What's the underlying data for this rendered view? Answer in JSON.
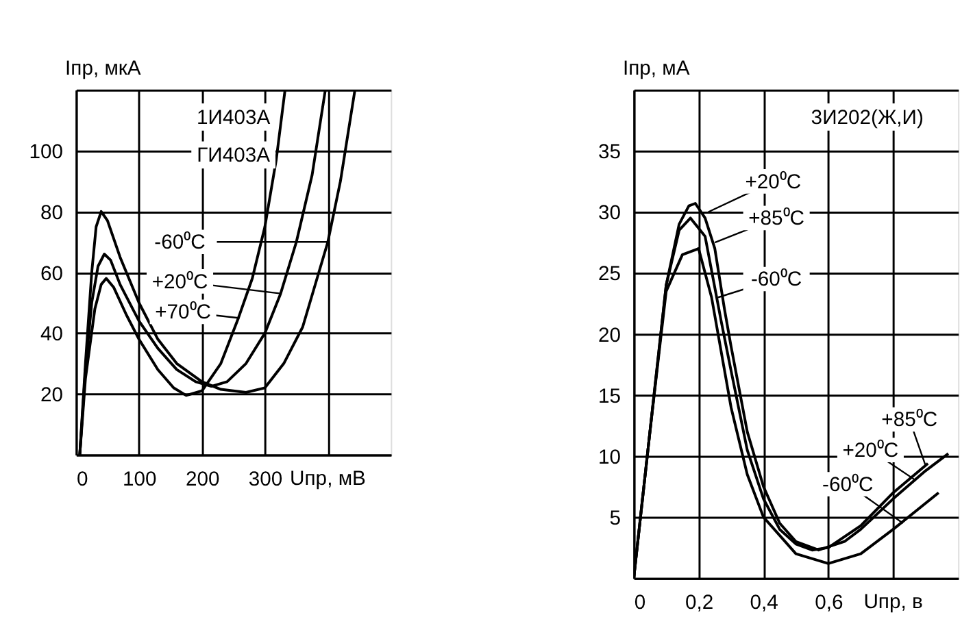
{
  "chart_data": [
    {
      "type": "line",
      "xlabel": "Uпр, мВ",
      "ylabel": "Iпр, мкА",
      "xlim": [
        0,
        500
      ],
      "ylim": [
        0,
        120
      ],
      "xticks": [
        0,
        100,
        200,
        300,
        {
          "value": 400,
          "label": null
        }
      ],
      "yticks": [
        {
          "value": 0,
          "label": null
        },
        20,
        40,
        60,
        80,
        100,
        {
          "value": 120,
          "label": null
        }
      ],
      "grid": true,
      "line_style": "solid",
      "series": [
        {
          "color": "#000000",
          "x": [
            6,
            15,
            25,
            32,
            40,
            50,
            70,
            100,
            130,
            160,
            200,
            230,
            270,
            300,
            330,
            360,
            400,
            420,
            443
          ],
          "values": [
            0,
            30,
            60,
            75,
            80,
            77,
            65,
            50,
            38,
            30,
            24,
            21.5,
            20.5,
            22,
            30,
            42,
            70,
            90,
            120
          ]
        },
        {
          "color": "#000000",
          "x": [
            6,
            15,
            25,
            35,
            45,
            55,
            70,
            100,
            130,
            160,
            190,
            215,
            240,
            270,
            300,
            325,
            350,
            375,
            396
          ],
          "values": [
            0,
            28,
            50,
            62,
            66,
            64,
            56,
            44,
            35,
            28,
            24,
            22.5,
            24,
            30,
            40,
            53,
            70,
            92,
            120
          ]
        },
        {
          "color": "#000000",
          "x": [
            6,
            15,
            30,
            40,
            48,
            60,
            80,
            100,
            130,
            155,
            175,
            200,
            230,
            258,
            280,
            300,
            318,
            332
          ],
          "values": [
            0,
            25,
            48,
            56,
            58,
            55,
            46,
            38,
            28,
            22,
            19.5,
            21,
            30,
            45,
            58,
            75,
            97,
            120
          ]
        }
      ],
      "annotations": [
        "1И403А",
        "ГИ403А",
        {
          "text": "-60⁰C",
          "x": 400,
          "y": 70
        },
        {
          "text": "+20⁰C",
          "x": 325,
          "y": 53
        },
        {
          "text": "+70⁰C",
          "x": 258,
          "y": 45
        }
      ]
    },
    {
      "type": "line",
      "xlabel": "Uпр, в",
      "ylabel": "Iпр, мА",
      "xlim": [
        0,
        1.0
      ],
      "ylim": [
        0,
        40
      ],
      "xticks": [
        0,
        {
          "value": 0.2,
          "label": "0,2"
        },
        {
          "value": 0.4,
          "label": "0,4"
        },
        {
          "value": 0.6,
          "label": "0,6"
        },
        {
          "value": 0.8,
          "label": null
        }
      ],
      "yticks": [
        {
          "value": 0,
          "label": null
        },
        5,
        10,
        15,
        20,
        25,
        30,
        35,
        {
          "value": 40,
          "label": null
        }
      ],
      "grid": true,
      "line_style": "solid",
      "series": [
        {
          "color": "#000000",
          "x": [
            0,
            0.05,
            0.1,
            0.14,
            0.17,
            0.19,
            0.22,
            0.25,
            0.28,
            0.3,
            0.35,
            0.4,
            0.45,
            0.5,
            0.57,
            0.65,
            0.7,
            0.8,
            0.9,
            0.97
          ],
          "values": [
            0,
            12,
            24,
            29,
            30.5,
            30.7,
            29.5,
            27,
            22,
            19,
            12,
            7.5,
            4.5,
            3,
            2.3,
            3,
            4,
            6.5,
            8.8,
            10.2
          ]
        },
        {
          "color": "#000000",
          "x": [
            0,
            0.05,
            0.1,
            0.14,
            0.175,
            0.22,
            0.27,
            0.3,
            0.35,
            0.4,
            0.45,
            0.5,
            0.55,
            0.6,
            0.7,
            0.8,
            0.907
          ],
          "values": [
            0,
            12,
            24,
            28.5,
            29.5,
            28,
            21,
            17,
            10.5,
            6.5,
            4,
            2.8,
            2.3,
            2.5,
            4.3,
            7,
            9.4
          ]
        },
        {
          "color": "#000000",
          "x": [
            0,
            0.05,
            0.1,
            0.15,
            0.2,
            0.24,
            0.28,
            0.3,
            0.35,
            0.4,
            0.5,
            0.6,
            0.7,
            0.8,
            0.94
          ],
          "values": [
            0,
            12,
            23.5,
            26.5,
            27,
            23,
            17,
            14,
            8.5,
            5,
            2,
            1.2,
            2,
            4,
            7
          ]
        }
      ],
      "annotations": [
        "3И202(Ж,И)",
        {
          "text": "+20⁰C",
          "x": 0.23,
          "y": 30
        },
        {
          "text": "+85⁰C",
          "x": 0.25,
          "y": 27.5
        },
        {
          "text": "-60⁰C",
          "x": 0.26,
          "y": 23
        },
        {
          "text": "+85⁰C",
          "x": 0.9,
          "y": 9.2
        },
        {
          "text": "+20⁰C",
          "x": 0.87,
          "y": 8
        },
        {
          "text": "-60⁰C",
          "x": 0.83,
          "y": 4.5
        }
      ]
    }
  ]
}
